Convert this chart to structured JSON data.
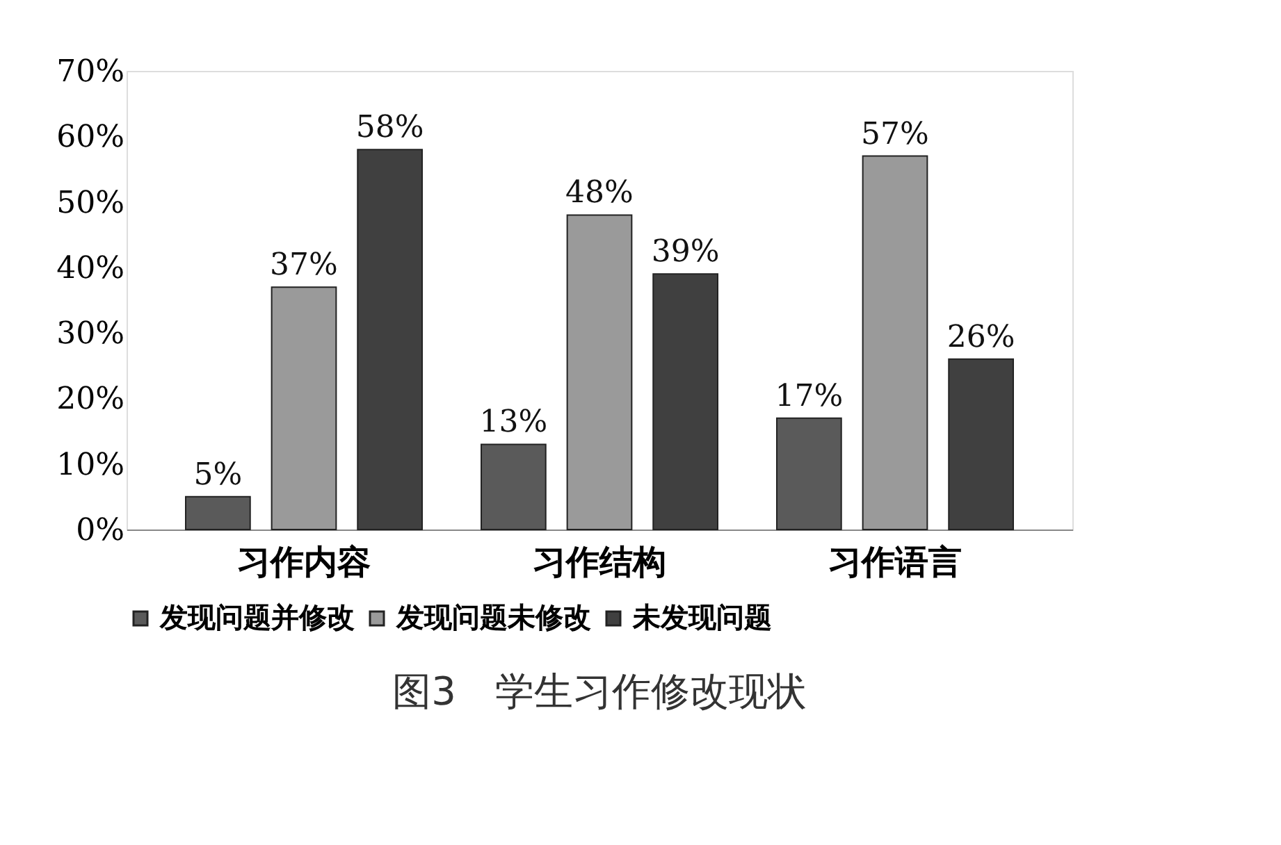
{
  "chart_data": {
    "type": "bar",
    "categories": [
      "习作内容",
      "习作结构",
      "习作语言"
    ],
    "series": [
      {
        "name": "发现问题并修改",
        "color": "#5a5a5a",
        "values": [
          5,
          13,
          17
        ],
        "value_labels": [
          "5%",
          "13%",
          "17%"
        ]
      },
      {
        "name": "发现问题未修改",
        "color": "#9a9a9a",
        "values": [
          37,
          48,
          57
        ],
        "value_labels": [
          "37%",
          "48%",
          "57%"
        ]
      },
      {
        "name": "未发现问题",
        "color": "#404040",
        "values": [
          58,
          39,
          26
        ],
        "value_labels": [
          "58%",
          "39%",
          "26%"
        ]
      }
    ],
    "ylim": [
      0,
      70
    ],
    "yticks": [
      {
        "value": 0,
        "label": "0%"
      },
      {
        "value": 10,
        "label": "10%"
      },
      {
        "value": 20,
        "label": "20%"
      },
      {
        "value": 30,
        "label": "30%"
      },
      {
        "value": 40,
        "label": "40%"
      },
      {
        "value": 50,
        "label": "50%"
      },
      {
        "value": 60,
        "label": "60%"
      },
      {
        "value": 70,
        "label": "70%"
      }
    ],
    "grid": false,
    "legend": "bottom",
    "annotations": [
      "图3　学生习作修改现状"
    ]
  }
}
